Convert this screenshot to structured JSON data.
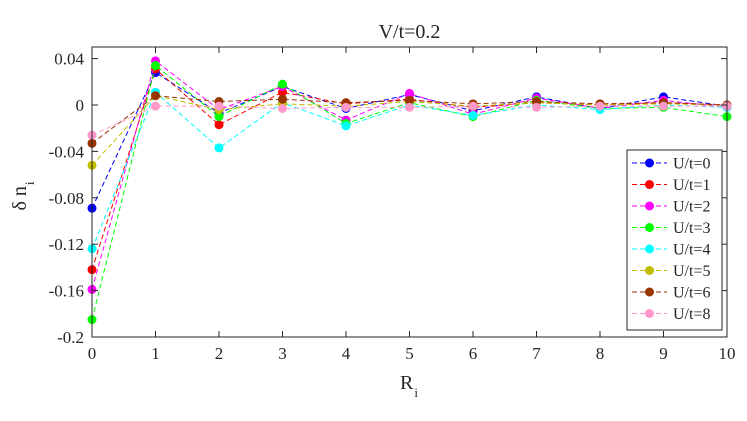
{
  "chart_data": {
    "type": "line",
    "title": "V/t=0.2",
    "xlabel": "R",
    "xlabel_sub": "i",
    "ylabel": "δ n",
    "ylabel_sub": "i",
    "xlim": [
      0,
      10
    ],
    "ylim": [
      -0.2,
      0.05
    ],
    "xticks": [
      0,
      1,
      2,
      3,
      4,
      5,
      6,
      7,
      8,
      9,
      10
    ],
    "yticks": [
      0.04,
      0,
      -0.04,
      -0.08,
      -0.12,
      -0.16,
      -0.2
    ],
    "ytick_labels": [
      "0.04",
      "0",
      "-0.04",
      "-0.08",
      "-0.12",
      "-0.16",
      "-0.2"
    ],
    "grid": false,
    "legend_position": "right",
    "x": [
      0,
      1,
      2,
      3,
      4,
      5,
      6,
      7,
      8,
      9,
      10
    ],
    "series": [
      {
        "name": "U/t=0",
        "color": "#0000ff",
        "values": [
          -0.089,
          0.028,
          -0.007,
          0.016,
          -0.003,
          0.009,
          -0.005,
          0.007,
          -0.003,
          0.007,
          -0.001
        ]
      },
      {
        "name": "U/t=1",
        "color": "#ff0000",
        "values": [
          -0.142,
          0.031,
          -0.017,
          0.011,
          0.001,
          0.005,
          -0.002,
          0.002,
          0.0,
          0.002,
          0.0
        ]
      },
      {
        "name": "U/t=2",
        "color": "#ff00ff",
        "values": [
          -0.159,
          0.038,
          -0.004,
          0.016,
          -0.013,
          0.01,
          -0.008,
          0.006,
          -0.003,
          0.004,
          -0.002
        ]
      },
      {
        "name": "U/t=3",
        "color": "#00ff00",
        "values": [
          -0.185,
          0.034,
          -0.01,
          0.018,
          -0.016,
          0.002,
          -0.01,
          0.004,
          -0.003,
          -0.002,
          -0.01
        ]
      },
      {
        "name": "U/t=4",
        "color": "#00ffff",
        "values": [
          -0.124,
          0.011,
          -0.037,
          0.002,
          -0.018,
          0.0,
          -0.009,
          0.0,
          -0.004,
          0.0,
          -0.002
        ]
      },
      {
        "name": "U/t=5",
        "color": "#bfbf00",
        "values": [
          -0.052,
          0.008,
          -0.004,
          0.001,
          -0.001,
          0.003,
          -0.001,
          0.002,
          0.0,
          0.001,
          0.0
        ]
      },
      {
        "name": "U/t=6",
        "color": "#993300",
        "values": [
          -0.033,
          0.008,
          0.003,
          0.005,
          0.002,
          0.004,
          0.001,
          0.003,
          0.001,
          0.002,
          0.0
        ]
      },
      {
        "name": "U/t=8",
        "color": "#ff99cc",
        "values": [
          -0.026,
          -0.001,
          -0.001,
          -0.003,
          -0.002,
          -0.002,
          -0.001,
          -0.002,
          -0.001,
          -0.001,
          -0.001
        ]
      }
    ]
  }
}
